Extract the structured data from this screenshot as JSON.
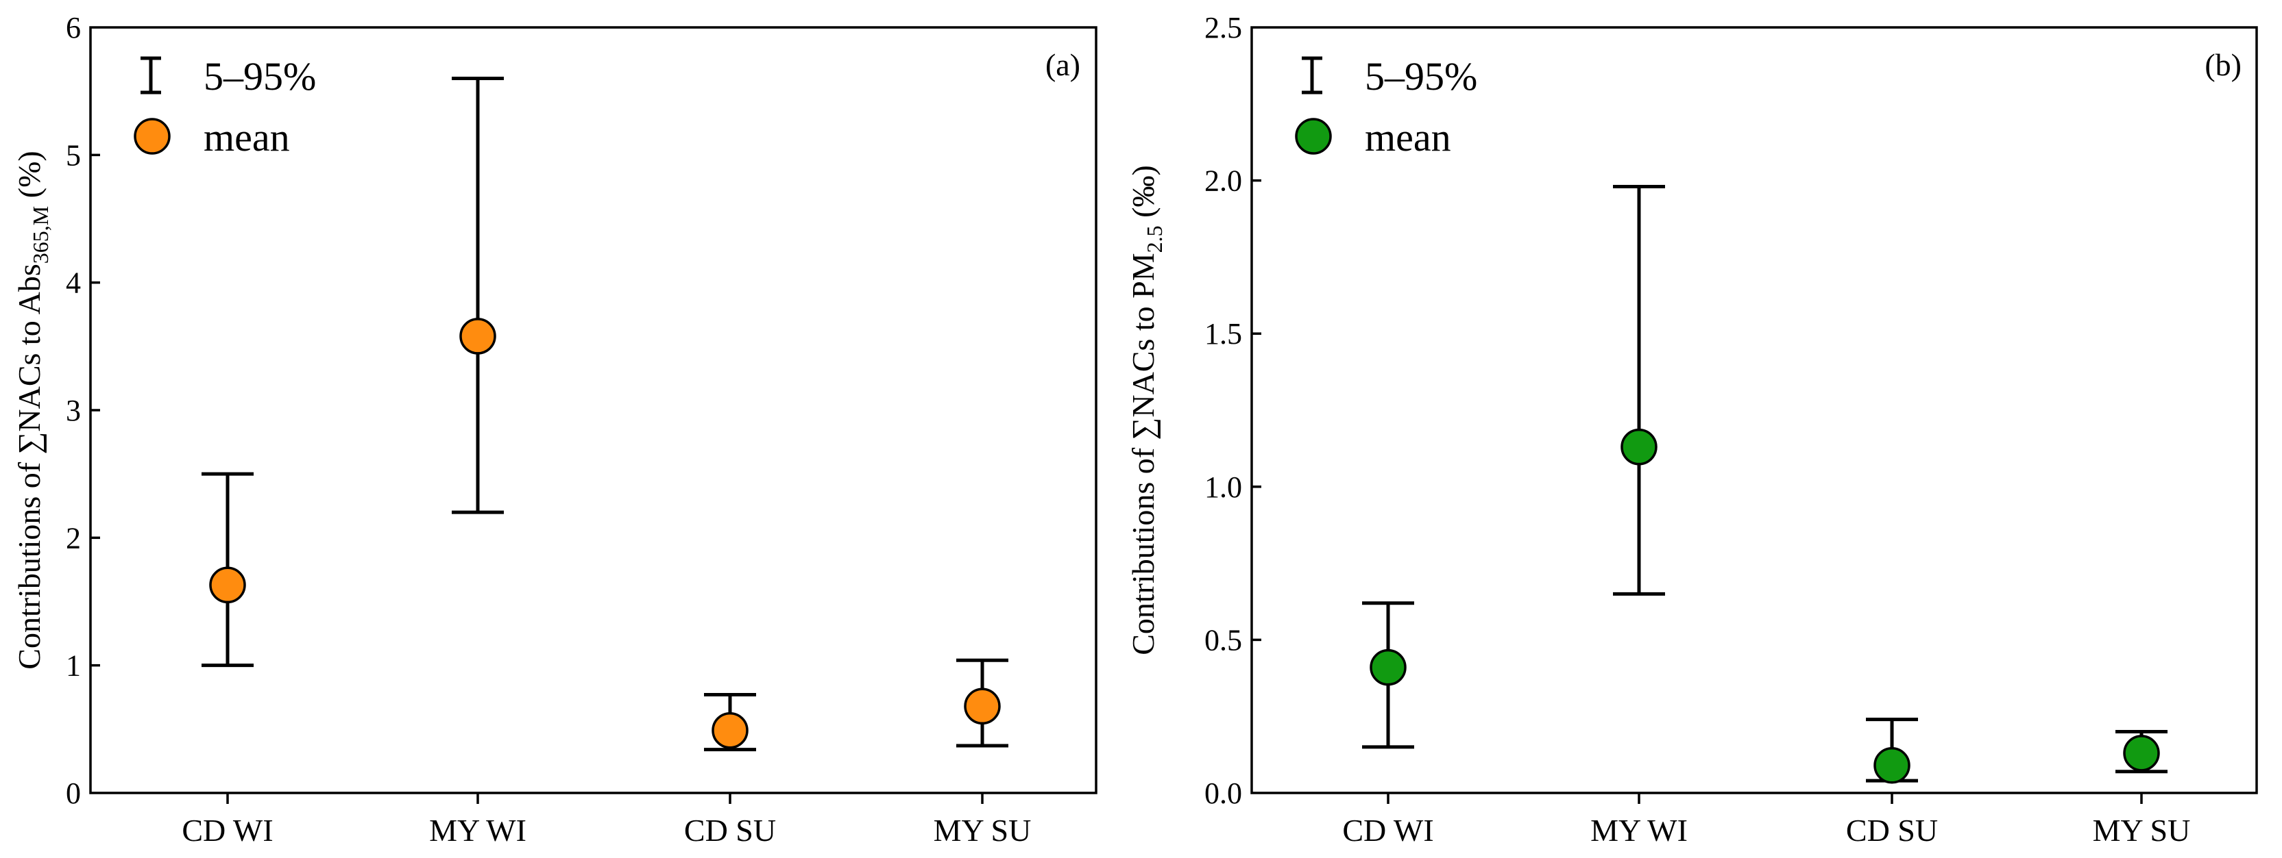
{
  "chart_data": [
    {
      "panel": "(a)",
      "type": "scatter",
      "title": "",
      "categories": [
        "CD WI",
        "MY WI",
        "CD SU",
        "MY SU"
      ],
      "series": [
        {
          "name": "mean",
          "values": [
            1.63,
            3.58,
            0.49,
            0.68
          ],
          "lower_5": [
            1.0,
            2.2,
            0.34,
            0.37
          ],
          "upper_95": [
            2.5,
            5.6,
            0.77,
            1.04
          ]
        }
      ],
      "ylabel_main": "Contributions of ∑NACs to Abs",
      "ylabel_sub": "365,M",
      "ylabel_suffix": " (%)",
      "xlabel": "",
      "ylim": [
        0,
        6
      ],
      "yticks": [
        0,
        1,
        2,
        3,
        4,
        5,
        6
      ],
      "ytick_labels": [
        "0",
        "1",
        "2",
        "3",
        "4",
        "5",
        "6"
      ],
      "marker_color": "#ff8c0f",
      "legend": {
        "range_label": "5–95%",
        "mean_label": "mean",
        "location": "top-left"
      }
    },
    {
      "panel": "(b)",
      "type": "scatter",
      "title": "",
      "categories": [
        "CD WI",
        "MY WI",
        "CD SU",
        "MY SU"
      ],
      "series": [
        {
          "name": "mean",
          "values": [
            0.41,
            1.13,
            0.09,
            0.13
          ],
          "lower_5": [
            0.15,
            0.65,
            0.04,
            0.07
          ],
          "upper_95": [
            0.62,
            1.98,
            0.24,
            0.2
          ]
        }
      ],
      "ylabel_main": "Contributions of ∑NACs to PM",
      "ylabel_sub": "2.5",
      "ylabel_suffix": " (‰)",
      "xlabel": "",
      "ylim": [
        0,
        2.5
      ],
      "yticks": [
        0,
        0.5,
        1.0,
        1.5,
        2.0,
        2.5
      ],
      "ytick_labels": [
        "0.0",
        "0.5",
        "1.0",
        "1.5",
        "2.0",
        "2.5"
      ],
      "marker_color": "#119a11",
      "legend": {
        "range_label": "5–95%",
        "mean_label": "mean",
        "location": "top-left"
      }
    }
  ]
}
